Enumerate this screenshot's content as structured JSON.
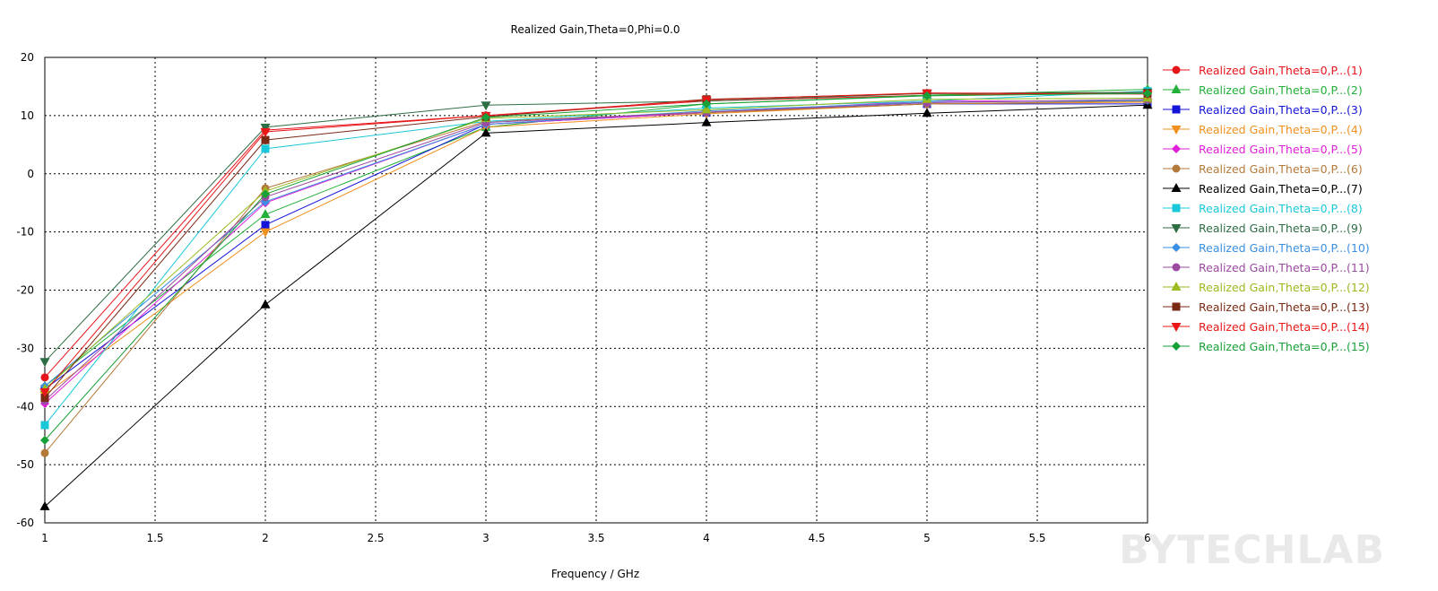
{
  "chart_data": {
    "type": "line",
    "title": "Realized Gain,Theta=0,Phi=0.0",
    "xlabel": "Frequency / GHz",
    "ylabel": "",
    "xlim": [
      1,
      6
    ],
    "ylim": [
      -60,
      20
    ],
    "xticks": [
      "1",
      "1.5",
      "2",
      "2.5",
      "3",
      "3.5",
      "4",
      "4.5",
      "5",
      "5.5",
      "6"
    ],
    "yticks": [
      "20",
      "10",
      "0",
      "-10",
      "-20",
      "-30",
      "-40",
      "-50",
      "-60"
    ],
    "grid": true,
    "legend_position": "right",
    "x": [
      1,
      2,
      3,
      4,
      5,
      6
    ],
    "series": [
      {
        "name": "Realized Gain,Theta=0,P...(1)",
        "color": "#e8141c",
        "marker": "circle",
        "values": [
          -35,
          7.5,
          10,
          12.5,
          13.5,
          14
        ]
      },
      {
        "name": "Realized Gain,Theta=0,P...(2)",
        "color": "#22b03a",
        "marker": "triangle-up",
        "values": [
          -36.5,
          -7,
          8,
          12,
          13.5,
          14.5
        ]
      },
      {
        "name": "Realized Gain,Theta=0,P...(3)",
        "color": "#1414d8",
        "marker": "square",
        "values": [
          -37,
          -8.8,
          8.5,
          10.5,
          12,
          12
        ]
      },
      {
        "name": "Realized Gain,Theta=0,P...(4)",
        "color": "#f0901e",
        "marker": "triangle-down",
        "values": [
          -38,
          -10,
          8,
          10.3,
          12,
          12.3
        ]
      },
      {
        "name": "Realized Gain,Theta=0,P...(5)",
        "color": "#e020d8",
        "marker": "diamond",
        "values": [
          -39.5,
          -5,
          8.5,
          10.5,
          12.5,
          12.5
        ]
      },
      {
        "name": "Realized Gain,Theta=0,P...(6)",
        "color": "#b47a3a",
        "marker": "circle",
        "values": [
          -48,
          -2.5,
          9,
          10.5,
          12,
          12.5
        ]
      },
      {
        "name": "Realized Gain,Theta=0,P...(7)",
        "color": "#000000",
        "marker": "triangle-up",
        "values": [
          -57.2,
          -22.5,
          7,
          8.8,
          10.4,
          11.8
        ]
      },
      {
        "name": "Realized Gain,Theta=0,P...(8)",
        "color": "#18c8d8",
        "marker": "square",
        "values": [
          -43.2,
          4.3,
          9,
          11.3,
          12.5,
          14.2
        ]
      },
      {
        "name": "Realized Gain,Theta=0,P...(9)",
        "color": "#2e6e44",
        "marker": "triangle-down",
        "values": [
          -32.3,
          8,
          11.8,
          12.5,
          13.8,
          14
        ]
      },
      {
        "name": "Realized Gain,Theta=0,P...(10)",
        "color": "#3a8fe0",
        "marker": "diamond",
        "values": [
          -36.5,
          -4.8,
          8.5,
          10.8,
          12.3,
          12.6
        ]
      },
      {
        "name": "Realized Gain,Theta=0,P...(11)",
        "color": "#9a4aa0",
        "marker": "circle",
        "values": [
          -39,
          -4,
          8.8,
          10.6,
          12.2,
          12.8
        ]
      },
      {
        "name": "Realized Gain,Theta=0,P...(12)",
        "color": "#9aba1e",
        "marker": "triangle-up",
        "values": [
          -37,
          -3,
          9.5,
          11,
          12.8,
          13
        ]
      },
      {
        "name": "Realized Gain,Theta=0,P...(13)",
        "color": "#7a2a14",
        "marker": "square",
        "values": [
          -38.5,
          5.8,
          9.8,
          12.8,
          13.8,
          13.8
        ]
      },
      {
        "name": "Realized Gain,Theta=0,P...(14)",
        "color": "#e81818",
        "marker": "triangle-down",
        "values": [
          -37.5,
          7.2,
          10,
          12.7,
          13.9,
          13.7
        ]
      },
      {
        "name": "Realized Gain,Theta=0,P...(15)",
        "color": "#18a038",
        "marker": "diamond",
        "values": [
          -45.8,
          -3.5,
          9.7,
          12,
          13.4,
          13.8
        ]
      }
    ]
  },
  "watermark": "BYTECHLAB"
}
